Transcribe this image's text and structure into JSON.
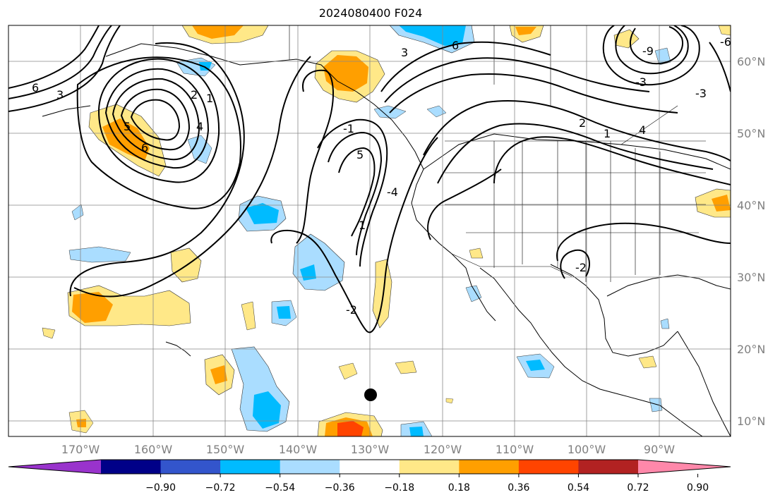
{
  "title": "2024080400 F024",
  "map": {
    "lat_labels": [
      "60°N",
      "50°N",
      "40°N",
      "30°N",
      "20°N",
      "10°N"
    ],
    "lon_labels": [
      "170°W",
      "160°W",
      "150°W",
      "140°W",
      "130°W",
      "120°W",
      "110°W",
      "100°W",
      "90°W"
    ],
    "contour_labels": [
      "6",
      "3",
      "2",
      "1",
      "5",
      "4",
      "6",
      "-3",
      "6",
      "3",
      "2",
      "1",
      "4",
      "5",
      "-4",
      "-1",
      "1",
      "-2",
      "-2",
      "-6",
      "-3",
      "-9"
    ]
  },
  "colorbar": {
    "colors": [
      "#9933cc",
      "#000088",
      "#3355cc",
      "#00bbff",
      "#aaddff",
      "#ffffff",
      "#ffe888",
      "#ff9f00",
      "#ff4400",
      "#b22222",
      "#ff88aa"
    ],
    "tick_labels": [
      "−0.90",
      "−0.72",
      "−0.54",
      "−0.36",
      "−0.18",
      "0.18",
      "0.36",
      "0.54",
      "0.72",
      "0.90"
    ]
  }
}
